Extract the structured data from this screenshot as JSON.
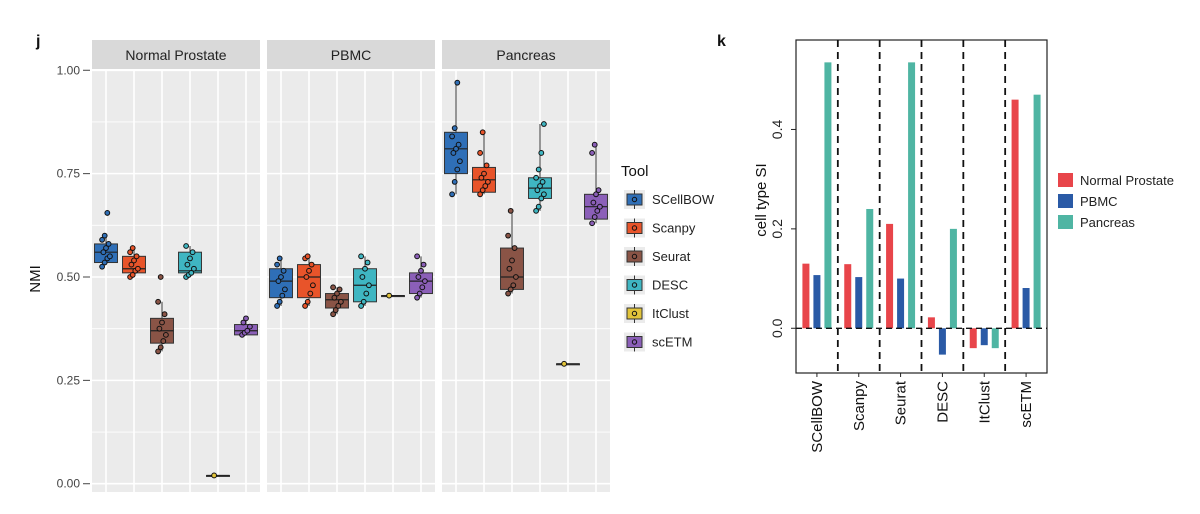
{
  "tool_colors": {
    "SCellBOW": "#2f6fb7",
    "Scanpy": "#e8542a",
    "Seurat": "#8a5446",
    "DESC": "#3fb6c2",
    "ItClust": "#e2c43a",
    "scETM": "#8b5fb8"
  },
  "dataset_colors": {
    "Normal Prostate": "#e8454a",
    "PBMC": "#2a5aa6",
    "Pancreas": "#4fb5a3"
  },
  "chart_data": [
    {
      "type": "box",
      "panel_label": "j",
      "ylabel": "NMI",
      "xlabel": "",
      "ylim": [
        -0.02,
        1.02
      ],
      "yticks": [
        "0.00",
        "0.25",
        "0.50",
        "0.75",
        "1.00"
      ],
      "facets": [
        "Normal Prostate",
        "PBMC",
        "Pancreas"
      ],
      "legend_title": "Tool",
      "tools": [
        "SCellBOW",
        "Scanpy",
        "Seurat",
        "DESC",
        "ItClust",
        "scETM"
      ],
      "boxes": {
        "Normal Prostate": [
          {
            "tool": "SCellBOW",
            "min": 0.53,
            "q1": 0.535,
            "median": 0.56,
            "q3": 0.58,
            "max": 0.6,
            "points": [
              0.525,
              0.535,
              0.545,
              0.55,
              0.56,
              0.57,
              0.58,
              0.59,
              0.6,
              0.655
            ]
          },
          {
            "tool": "Scanpy",
            "min": 0.5,
            "q1": 0.51,
            "median": 0.52,
            "q3": 0.55,
            "max": 0.57,
            "points": [
              0.5,
              0.505,
              0.515,
              0.52,
              0.53,
              0.54,
              0.55,
              0.56,
              0.57
            ]
          },
          {
            "tool": "Seurat",
            "min": 0.32,
            "q1": 0.34,
            "median": 0.37,
            "q3": 0.4,
            "max": 0.44,
            "points": [
              0.32,
              0.33,
              0.345,
              0.36,
              0.375,
              0.39,
              0.41,
              0.44,
              0.5
            ]
          },
          {
            "tool": "DESC",
            "min": 0.5,
            "q1": 0.51,
            "median": 0.515,
            "q3": 0.56,
            "max": 0.575,
            "points": [
              0.5,
              0.505,
              0.51,
              0.52,
              0.53,
              0.545,
              0.56,
              0.575
            ]
          },
          {
            "tool": "ItClust",
            "min": 0.02,
            "q1": 0.02,
            "median": 0.02,
            "q3": 0.02,
            "max": 0.02,
            "points": [
              0.02
            ]
          },
          {
            "tool": "scETM",
            "min": 0.36,
            "q1": 0.36,
            "median": 0.37,
            "q3": 0.385,
            "max": 0.4,
            "points": [
              0.36,
              0.365,
              0.37,
              0.38,
              0.39,
              0.4
            ]
          }
        ],
        "PBMC": [
          {
            "tool": "SCellBOW",
            "min": 0.43,
            "q1": 0.45,
            "median": 0.49,
            "q3": 0.52,
            "max": 0.545,
            "points": [
              0.43,
              0.44,
              0.455,
              0.47,
              0.49,
              0.5,
              0.515,
              0.53,
              0.545
            ]
          },
          {
            "tool": "Scanpy",
            "min": 0.43,
            "q1": 0.45,
            "median": 0.5,
            "q3": 0.53,
            "max": 0.55,
            "points": [
              0.43,
              0.44,
              0.46,
              0.48,
              0.5,
              0.515,
              0.53,
              0.545,
              0.55
            ]
          },
          {
            "tool": "Seurat",
            "min": 0.41,
            "q1": 0.425,
            "median": 0.445,
            "q3": 0.46,
            "max": 0.475,
            "points": [
              0.41,
              0.42,
              0.43,
              0.44,
              0.45,
              0.46,
              0.47,
              0.475
            ]
          },
          {
            "tool": "DESC",
            "min": 0.43,
            "q1": 0.44,
            "median": 0.48,
            "q3": 0.52,
            "max": 0.55,
            "points": [
              0.43,
              0.44,
              0.46,
              0.48,
              0.5,
              0.52,
              0.535,
              0.55
            ]
          },
          {
            "tool": "ItClust",
            "min": 0.455,
            "q1": 0.455,
            "median": 0.455,
            "q3": 0.455,
            "max": 0.455,
            "points": [
              0.455
            ]
          },
          {
            "tool": "scETM",
            "min": 0.45,
            "q1": 0.46,
            "median": 0.49,
            "q3": 0.51,
            "max": 0.55,
            "points": [
              0.45,
              0.46,
              0.475,
              0.49,
              0.5,
              0.515,
              0.53,
              0.55
            ]
          }
        ],
        "Pancreas": [
          {
            "tool": "SCellBOW",
            "min": 0.7,
            "q1": 0.75,
            "median": 0.81,
            "q3": 0.85,
            "max": 0.97,
            "points": [
              0.7,
              0.73,
              0.76,
              0.78,
              0.8,
              0.81,
              0.82,
              0.84,
              0.86,
              0.97
            ]
          },
          {
            "tool": "Scanpy",
            "min": 0.7,
            "q1": 0.705,
            "median": 0.735,
            "q3": 0.765,
            "max": 0.85,
            "points": [
              0.7,
              0.71,
              0.72,
              0.73,
              0.74,
              0.75,
              0.77,
              0.8,
              0.85
            ]
          },
          {
            "tool": "Seurat",
            "min": 0.46,
            "q1": 0.47,
            "median": 0.5,
            "q3": 0.57,
            "max": 0.66,
            "points": [
              0.46,
              0.47,
              0.48,
              0.5,
              0.52,
              0.54,
              0.57,
              0.6,
              0.66
            ]
          },
          {
            "tool": "DESC",
            "min": 0.66,
            "q1": 0.69,
            "median": 0.715,
            "q3": 0.74,
            "max": 0.87,
            "points": [
              0.66,
              0.67,
              0.69,
              0.7,
              0.71,
              0.72,
              0.73,
              0.74,
              0.76,
              0.8,
              0.87
            ]
          },
          {
            "tool": "ItClust",
            "min": 0.29,
            "q1": 0.29,
            "median": 0.29,
            "q3": 0.29,
            "max": 0.29,
            "points": [
              0.29
            ]
          },
          {
            "tool": "scETM",
            "min": 0.63,
            "q1": 0.64,
            "median": 0.67,
            "q3": 0.7,
            "max": 0.82,
            "points": [
              0.63,
              0.645,
              0.66,
              0.67,
              0.68,
              0.7,
              0.71,
              0.8,
              0.82
            ]
          }
        ]
      }
    },
    {
      "type": "bar",
      "panel_label": "k",
      "ylabel": "cell type SI",
      "xlabel": "",
      "ylim": [
        -0.09,
        0.58
      ],
      "yticks": [
        "0.0",
        "0.2",
        "0.4"
      ],
      "categories": [
        "SCellBOW",
        "Scanpy",
        "Seurat",
        "DESC",
        "ItClust",
        "scETM"
      ],
      "series": [
        {
          "name": "Normal Prostate",
          "values": [
            0.13,
            0.129,
            0.21,
            0.022,
            -0.04,
            0.46
          ]
        },
        {
          "name": "PBMC",
          "values": [
            0.107,
            0.103,
            0.1,
            -0.053,
            -0.034,
            0.081
          ]
        },
        {
          "name": "Pancreas",
          "values": [
            0.535,
            0.24,
            0.535,
            0.2,
            -0.04,
            0.47
          ]
        }
      ],
      "legend": [
        "Normal Prostate",
        "PBMC",
        "Pancreas"
      ]
    }
  ]
}
